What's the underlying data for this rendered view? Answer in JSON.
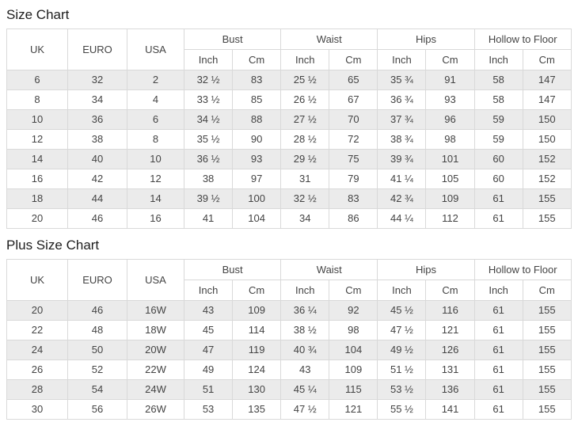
{
  "colors": {
    "stripe": "#ebebeb",
    "border": "#d9d9d9",
    "text": "#444444",
    "title": "#1d1d1d",
    "background": "#ffffff"
  },
  "tables": [
    {
      "title": "Size Chart",
      "headers": {
        "uk": "UK",
        "euro": "EURO",
        "usa": "USA",
        "bust": "Bust",
        "waist": "Waist",
        "hips": "Hips",
        "hollow": "Hollow to Floor",
        "inch": "Inch",
        "cm": "Cm"
      },
      "rows": [
        [
          "6",
          "32",
          "2",
          "32 ½",
          "83",
          "25 ½",
          "65",
          "35 ¾",
          "91",
          "58",
          "147"
        ],
        [
          "8",
          "34",
          "4",
          "33 ½",
          "85",
          "26 ½",
          "67",
          "36 ¾",
          "93",
          "58",
          "147"
        ],
        [
          "10",
          "36",
          "6",
          "34 ½",
          "88",
          "27 ½",
          "70",
          "37 ¾",
          "96",
          "59",
          "150"
        ],
        [
          "12",
          "38",
          "8",
          "35 ½",
          "90",
          "28 ½",
          "72",
          "38 ¾",
          "98",
          "59",
          "150"
        ],
        [
          "14",
          "40",
          "10",
          "36 ½",
          "93",
          "29 ½",
          "75",
          "39 ¾",
          "101",
          "60",
          "152"
        ],
        [
          "16",
          "42",
          "12",
          "38",
          "97",
          "31",
          "79",
          "41 ¼",
          "105",
          "60",
          "152"
        ],
        [
          "18",
          "44",
          "14",
          "39 ½",
          "100",
          "32 ½",
          "83",
          "42 ¾",
          "109",
          "61",
          "155"
        ],
        [
          "20",
          "46",
          "16",
          "41",
          "104",
          "34",
          "86",
          "44 ¼",
          "112",
          "61",
          "155"
        ]
      ]
    },
    {
      "title": "Plus Size Chart",
      "headers": {
        "uk": "UK",
        "euro": "EURO",
        "usa": "USA",
        "bust": "Bust",
        "waist": "Waist",
        "hips": "Hips",
        "hollow": "Hollow to Floor",
        "inch": "Inch",
        "cm": "Cm"
      },
      "rows": [
        [
          "20",
          "46",
          "16W",
          "43",
          "109",
          "36 ¼",
          "92",
          "45 ½",
          "116",
          "61",
          "155"
        ],
        [
          "22",
          "48",
          "18W",
          "45",
          "114",
          "38 ½",
          "98",
          "47 ½",
          "121",
          "61",
          "155"
        ],
        [
          "24",
          "50",
          "20W",
          "47",
          "119",
          "40 ¾",
          "104",
          "49 ½",
          "126",
          "61",
          "155"
        ],
        [
          "26",
          "52",
          "22W",
          "49",
          "124",
          "43",
          "109",
          "51 ½",
          "131",
          "61",
          "155"
        ],
        [
          "28",
          "54",
          "24W",
          "51",
          "130",
          "45 ¼",
          "115",
          "53 ½",
          "136",
          "61",
          "155"
        ],
        [
          "30",
          "56",
          "26W",
          "53",
          "135",
          "47 ½",
          "121",
          "55 ½",
          "141",
          "61",
          "155"
        ]
      ]
    }
  ]
}
